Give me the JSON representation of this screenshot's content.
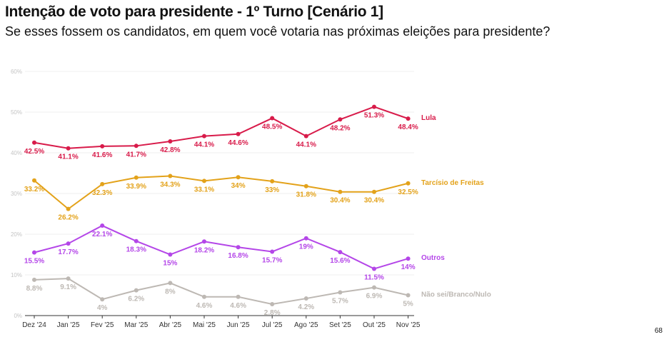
{
  "title": "Intenção de voto para presidente - 1º Turno [Cenário 1]",
  "subtitle": "Se esses fossem os candidatos, em quem você votaria nas próximas eleições para presidente?",
  "page_number": "68",
  "chart_data": {
    "type": "line",
    "categories": [
      "Dez '24",
      "Jan '25",
      "Fev '25",
      "Mar '25",
      "Abr '25",
      "Mai '25",
      "Jun '25",
      "Jul '25",
      "Ago '25",
      "Set '25",
      "Out '25",
      "Nov '25"
    ],
    "ylim": [
      0,
      60
    ],
    "yticks": [
      0,
      10,
      20,
      30,
      40,
      50,
      60
    ],
    "ytick_labels": [
      "0%",
      "10%",
      "20%",
      "30%",
      "40%",
      "50%",
      "60%"
    ],
    "grid": true,
    "legend": "right (end-of-line labels)",
    "series": [
      {
        "name": "Lula",
        "color": "#d81b4a",
        "values": [
          42.5,
          41.1,
          41.6,
          41.7,
          42.8,
          44.1,
          44.6,
          48.5,
          44.1,
          48.2,
          51.3,
          48.4
        ],
        "labels": [
          "42.5%",
          "41.1%",
          "41.6%",
          "41.7%",
          "42.8%",
          "44.1%",
          "44.6%",
          "48.5%",
          "44.1%",
          "48.2%",
          "51.3%",
          "48.4%"
        ]
      },
      {
        "name": "Tarcísio de Freitas",
        "color": "#e3a21a",
        "values": [
          33.2,
          26.2,
          32.3,
          33.9,
          34.3,
          33.1,
          34,
          33,
          31.8,
          30.4,
          30.4,
          32.5
        ],
        "labels": [
          "33.2%",
          "26.2%",
          "32.3%",
          "33.9%",
          "34.3%",
          "33.1%",
          "34%",
          "33%",
          "31.8%",
          "30.4%",
          "30.4%",
          "32.5%"
        ]
      },
      {
        "name": "Outros",
        "color": "#b446e8",
        "values": [
          15.5,
          17.7,
          22.1,
          18.3,
          15,
          18.2,
          16.8,
          15.7,
          19,
          15.6,
          11.5,
          14
        ],
        "labels": [
          "15.5%",
          "17.7%",
          "22.1%",
          "18.3%",
          "15%",
          "18.2%",
          "16.8%",
          "15.7%",
          "19%",
          "15.6%",
          "11.5%",
          "14%"
        ]
      },
      {
        "name": "Não sei/Branco/Nulo",
        "color": "#bdb8b3",
        "values": [
          8.8,
          9.1,
          4,
          6.2,
          8,
          4.6,
          4.6,
          2.8,
          4.2,
          5.7,
          6.9,
          5
        ],
        "labels": [
          "8.8%",
          "9.1%",
          "4%",
          "6.2%",
          "8%",
          "4.6%",
          "4.6%",
          "2.8%",
          "4.2%",
          "5.7%",
          "6.9%",
          "5%"
        ]
      }
    ]
  }
}
